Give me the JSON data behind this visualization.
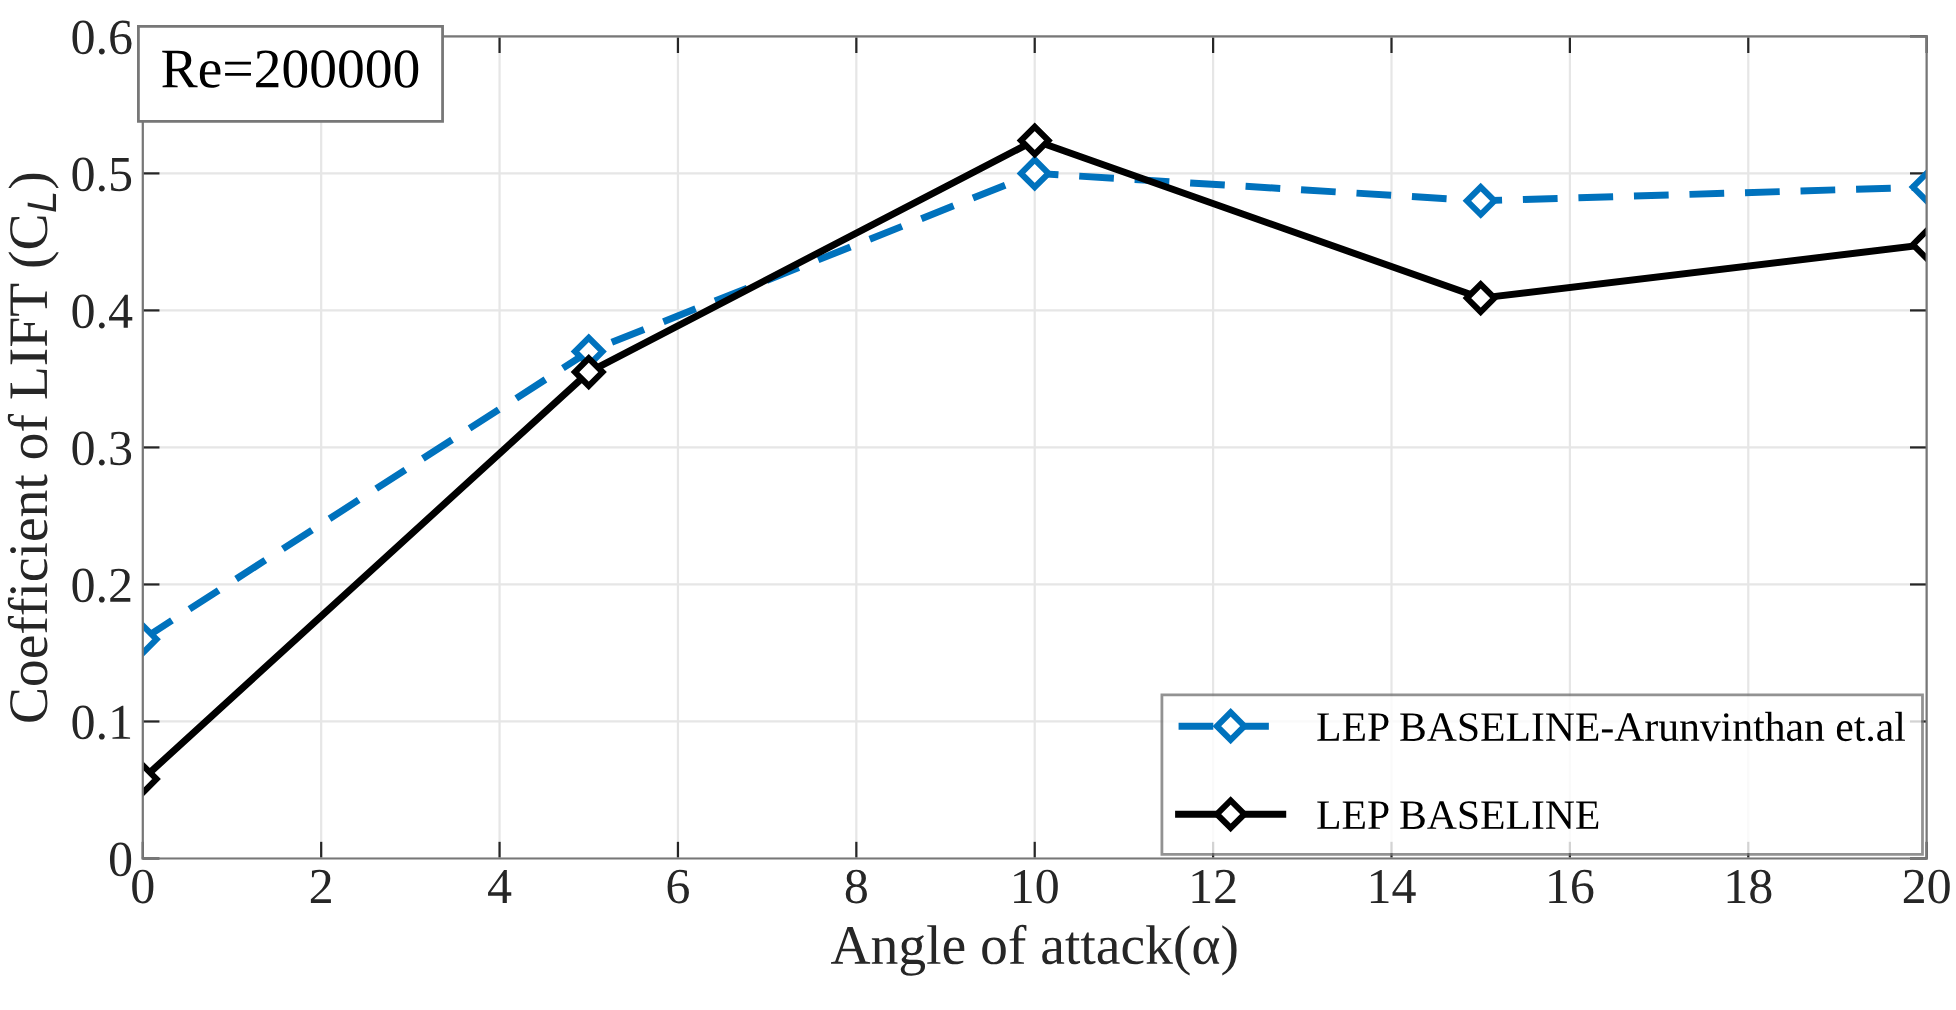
{
  "chart_data": {
    "type": "line",
    "xlabel": "Angle of attack(α)",
    "ylabel": "Coefficient of LIFT (C$_{L}$)",
    "x": [
      0,
      5,
      10,
      15,
      20
    ],
    "series": [
      {
        "name": "LEP BASELINE-Arunvinthan et.al",
        "color": "#0072bd",
        "line_style": "dashed",
        "values": [
          0.16,
          0.37,
          0.5,
          0.48,
          0.49
        ]
      },
      {
        "name": "LEP BASELINE",
        "color": "#000000",
        "line_style": "solid",
        "values": [
          0.058,
          0.355,
          0.524,
          0.409,
          0.448
        ]
      }
    ],
    "annotations": [
      "Re=200000"
    ],
    "xlim": [
      0,
      20
    ],
    "xticks": [
      0,
      2,
      4,
      6,
      8,
      10,
      12,
      14,
      16,
      18,
      20
    ],
    "ylim": [
      0,
      0.6
    ],
    "yticks": [
      0,
      0.1,
      0.2,
      0.3,
      0.4,
      0.5,
      0.6
    ],
    "grid": true,
    "legend": "bottom right",
    "marker": "diamond"
  }
}
